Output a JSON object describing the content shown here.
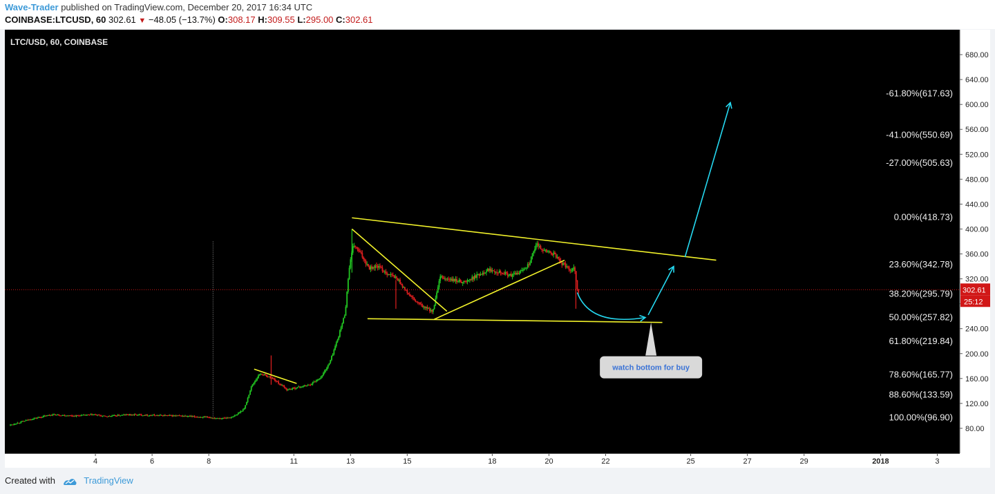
{
  "header": {
    "author": "Wave-Trader",
    "published": "published on TradingView.com, December 20, 2017 16:34 UTC",
    "symbol": "COINBASE:LTCUSD, 60",
    "last": "302.61",
    "change_arrow": "▼",
    "change": "−48.05 (−13.7%)",
    "o_label": "O:",
    "o_value": "308.17",
    "h_label": "H:",
    "h_value": "309.55",
    "l_label": "L:",
    "l_value": "295.00",
    "c_label": "C:",
    "c_value": "302.61"
  },
  "footer": {
    "created_with": "Created with",
    "brand": "TradingView"
  },
  "colors": {
    "background": "#000000",
    "up": "#22c722",
    "down": "#e01f1f",
    "trendline": "#f2f22a",
    "projection": "#25d8f0",
    "price_line": "#d11717",
    "axis_text": "#222222"
  },
  "chart_data": {
    "type": "candlestick",
    "title": "LTC/USD, 60, COINBASE",
    "y_ticks": [
      "80.00",
      "120.00",
      "160.00",
      "200.00",
      "240.00",
      "280.00",
      "320.00",
      "360.00",
      "400.00",
      "440.00",
      "480.00",
      "520.00",
      "560.00",
      "600.00",
      "640.00",
      "680.00"
    ],
    "y_range": [
      40,
      720
    ],
    "x_ticks": [
      {
        "label": "4",
        "t": 3
      },
      {
        "label": "6",
        "t": 5
      },
      {
        "label": "8",
        "t": 7
      },
      {
        "label": "11",
        "t": 10
      },
      {
        "label": "13",
        "t": 12
      },
      {
        "label": "15",
        "t": 14
      },
      {
        "label": "18",
        "t": 17
      },
      {
        "label": "20",
        "t": 19
      },
      {
        "label": "22",
        "t": 21
      },
      {
        "label": "25",
        "t": 24
      },
      {
        "label": "27",
        "t": 26
      },
      {
        "label": "29",
        "t": 28
      },
      {
        "label": "2018",
        "t": 30.7,
        "bold": true
      },
      {
        "label": "3",
        "t": 32.7
      }
    ],
    "x_range": [
      0,
      33.2
    ],
    "price_key": [
      [
        0,
        85
      ],
      [
        0.8,
        95
      ],
      [
        1.5,
        102
      ],
      [
        2.3,
        100
      ],
      [
        3,
        102
      ],
      [
        3.4,
        99
      ],
      [
        4.2,
        102
      ],
      [
        5,
        101
      ],
      [
        6,
        100
      ],
      [
        6.8,
        98
      ],
      [
        7.5,
        96
      ],
      [
        7.9,
        98
      ],
      [
        8.3,
        112
      ],
      [
        8.55,
        148
      ],
      [
        8.85,
        168
      ],
      [
        9.3,
        160
      ],
      [
        9.8,
        142
      ],
      [
        10.2,
        146
      ],
      [
        10.6,
        150
      ],
      [
        11,
        162
      ],
      [
        11.3,
        185
      ],
      [
        11.6,
        225
      ],
      [
        11.85,
        265
      ],
      [
        12,
        340
      ],
      [
        12.15,
        375
      ],
      [
        12.4,
        360
      ],
      [
        12.7,
        338
      ],
      [
        13,
        340
      ],
      [
        13.3,
        330
      ],
      [
        13.7,
        320
      ],
      [
        14,
        300
      ],
      [
        14.3,
        285
      ],
      [
        14.6,
        275
      ],
      [
        14.95,
        268
      ],
      [
        15.2,
        322
      ],
      [
        15.6,
        318
      ],
      [
        16.1,
        315
      ],
      [
        16.5,
        325
      ],
      [
        16.9,
        335
      ],
      [
        17.3,
        332
      ],
      [
        17.7,
        325
      ],
      [
        18,
        330
      ],
      [
        18.35,
        345
      ],
      [
        18.6,
        375
      ],
      [
        18.9,
        365
      ],
      [
        19.2,
        360
      ],
      [
        19.5,
        345
      ],
      [
        19.8,
        335
      ],
      [
        19.95,
        338
      ],
      [
        20.05,
        300
      ]
    ],
    "hline_price": 302.61,
    "ohlc_last": {
      "o": 308.17,
      "h": 309.55,
      "l": 295.0,
      "c": 302.61
    },
    "last_price_label": "302.61",
    "countdown_label": "25:12",
    "fib_levels": [
      {
        "label": "-61.80%(617.63)",
        "price": 617.63
      },
      {
        "label": "-41.00%(550.69)",
        "price": 550.69
      },
      {
        "label": "-27.00%(505.63)",
        "price": 505.63
      },
      {
        "label": "0.00%(418.73)",
        "price": 418.73
      },
      {
        "label": "23.60%(342.78)",
        "price": 342.78
      },
      {
        "label": "38.20%(295.79)",
        "price": 295.79
      },
      {
        "label": "50.00%(257.82)",
        "price": 257.82
      },
      {
        "label": "61.80%(219.84)",
        "price": 219.84
      },
      {
        "label": "78.60%(165.77)",
        "price": 165.77
      },
      {
        "label": "88.60%(133.59)",
        "price": 133.59
      },
      {
        "label": "100.00%(96.90)",
        "price": 96.9
      }
    ],
    "trendlines": [
      {
        "name": "upper-descending",
        "from": [
          12.05,
          418
        ],
        "to": [
          24.9,
          350
        ]
      },
      {
        "name": "lower-support",
        "from": [
          12.6,
          256
        ],
        "to": [
          23.0,
          250
        ]
      },
      {
        "name": "wedge-upper",
        "from": [
          12.05,
          400
        ],
        "to": [
          15.4,
          268
        ]
      },
      {
        "name": "wedge-lower",
        "from": [
          14.95,
          255
        ],
        "to": [
          19.55,
          350
        ]
      },
      {
        "name": "small-flag",
        "from": [
          8.6,
          175
        ],
        "to": [
          10.1,
          152
        ]
      }
    ],
    "vline_t": 7.15,
    "projection": {
      "curve": [
        [
          20.0,
          298
        ],
        [
          20.4,
          250
        ],
        [
          21.6,
          252
        ],
        [
          22.4,
          258
        ]
      ],
      "leg1": [
        [
          22.5,
          262
        ],
        [
          23.4,
          340
        ]
      ],
      "leg2": [
        [
          23.8,
          355
        ],
        [
          25.4,
          603
        ]
      ]
    },
    "callout": {
      "text": "watch bottom for buy",
      "t": 22.6,
      "price": 178
    }
  }
}
